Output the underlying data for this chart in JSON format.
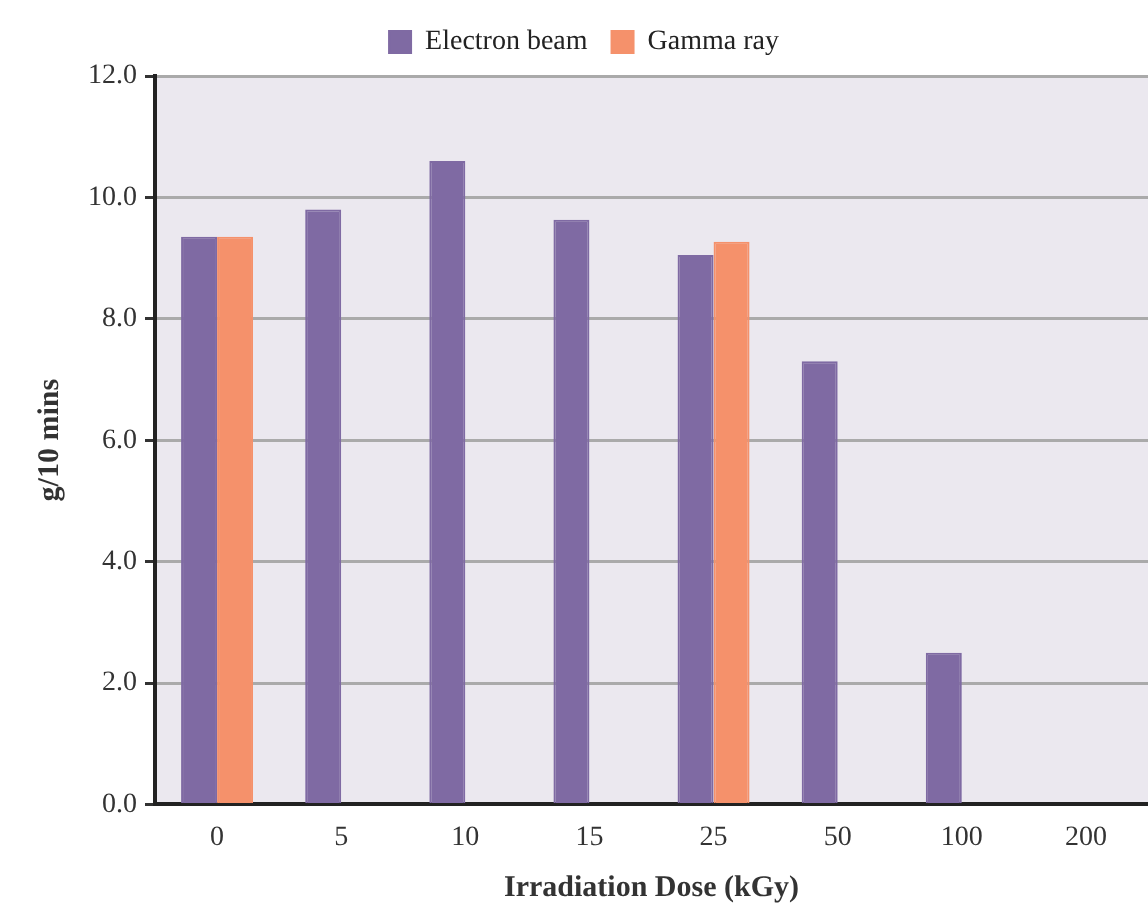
{
  "chart_data": {
    "type": "bar",
    "xlabel": "Irradiation Dose (kGy)",
    "ylabel": "g/10 mins",
    "categories": [
      "0",
      "5",
      "10",
      "15",
      "25",
      "50",
      "100",
      "200"
    ],
    "series": [
      {
        "name": "Electron beam",
        "color": "#7f6aa3",
        "values": [
          9.35,
          9.8,
          10.6,
          9.63,
          9.05,
          7.3,
          2.5,
          null
        ]
      },
      {
        "name": "Gamma ray",
        "color": "#f5916b",
        "values": [
          9.35,
          null,
          null,
          null,
          9.27,
          null,
          null,
          null
        ]
      }
    ],
    "ylim": [
      0,
      12
    ],
    "yticks": [
      {
        "value": 0,
        "label": "0.0"
      },
      {
        "value": 2,
        "label": "2.0"
      },
      {
        "value": 4,
        "label": "4.0"
      },
      {
        "value": 6,
        "label": "6.0"
      },
      {
        "value": 8,
        "label": "8.0"
      },
      {
        "value": 10,
        "label": "10.0"
      },
      {
        "value": 12,
        "label": "12.0"
      }
    ],
    "grid": "y",
    "legend": "top"
  }
}
